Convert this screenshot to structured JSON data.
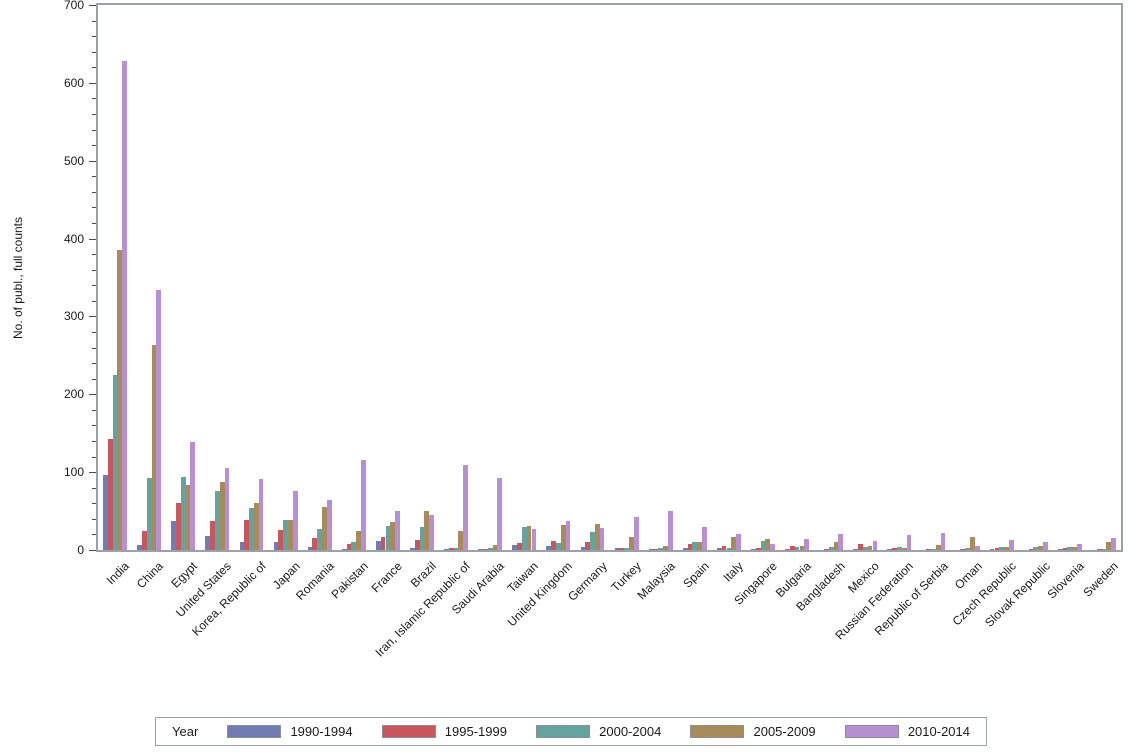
{
  "chart_data": {
    "type": "bar",
    "title": "",
    "xlabel": "",
    "ylabel": "No. of publ., full counts",
    "ylim": [
      0,
      700
    ],
    "ytick_step": 100,
    "minor_tick_step": 20,
    "grid": false,
    "legend_title": "Year",
    "legend_position": "bottom",
    "categories": [
      "India",
      "China",
      "Egypt",
      "United States",
      "Korea, Republic of",
      "Japan",
      "Romania",
      "Pakistan",
      "France",
      "Brazil",
      "Iran, Islamic Republic of",
      "Saudi Arabia",
      "Taiwan",
      "United Kingdom",
      "Germany",
      "Turkey",
      "Malaysia",
      "Spain",
      "Italy",
      "Singapore",
      "Bulgaria",
      "Bangladesh",
      "Mexico",
      "Russian Federation",
      "Republic of Serbia",
      "Oman",
      "Czech Republic",
      "Slovak Republic",
      "Slovenia",
      "Sweden"
    ],
    "series": [
      {
        "name": "1990-1994",
        "color": "#6f7db2",
        "values": [
          97,
          6,
          37,
          18,
          10,
          10,
          4,
          1,
          11,
          2,
          1,
          1,
          6,
          5,
          4,
          2,
          1,
          3,
          2,
          1,
          1,
          0,
          1,
          1,
          0,
          0,
          1,
          0,
          1,
          0
        ]
      },
      {
        "name": "1995-1999",
        "color": "#c9565c",
        "values": [
          142,
          24,
          61,
          37,
          38,
          26,
          15,
          8,
          17,
          13,
          2,
          1,
          9,
          12,
          10,
          2,
          1,
          8,
          5,
          2,
          5,
          1,
          8,
          3,
          1,
          1,
          2,
          1,
          3,
          1
        ]
      },
      {
        "name": "2000-2004",
        "color": "#64a39e",
        "values": [
          225,
          92,
          94,
          76,
          54,
          39,
          27,
          10,
          31,
          30,
          3,
          3,
          30,
          9,
          23,
          3,
          2,
          10,
          3,
          12,
          4,
          4,
          4,
          4,
          1,
          3,
          4,
          4,
          4,
          1
        ]
      },
      {
        "name": "2005-2009",
        "color": "#a88b5b",
        "values": [
          385,
          263,
          83,
          88,
          60,
          38,
          55,
          25,
          36,
          50,
          25,
          6,
          31,
          32,
          33,
          17,
          5,
          10,
          17,
          14,
          5,
          10,
          5,
          3,
          7,
          17,
          4,
          5,
          4,
          10
        ]
      },
      {
        "name": "2010-2014",
        "color": "#b690d2",
        "values": [
          628,
          334,
          139,
          106,
          91,
          76,
          64,
          116,
          50,
          45,
          109,
          93,
          27,
          37,
          28,
          42,
          50,
          29,
          21,
          8,
          14,
          20,
          12,
          19,
          22,
          5,
          13,
          10,
          8,
          15
        ]
      }
    ]
  }
}
